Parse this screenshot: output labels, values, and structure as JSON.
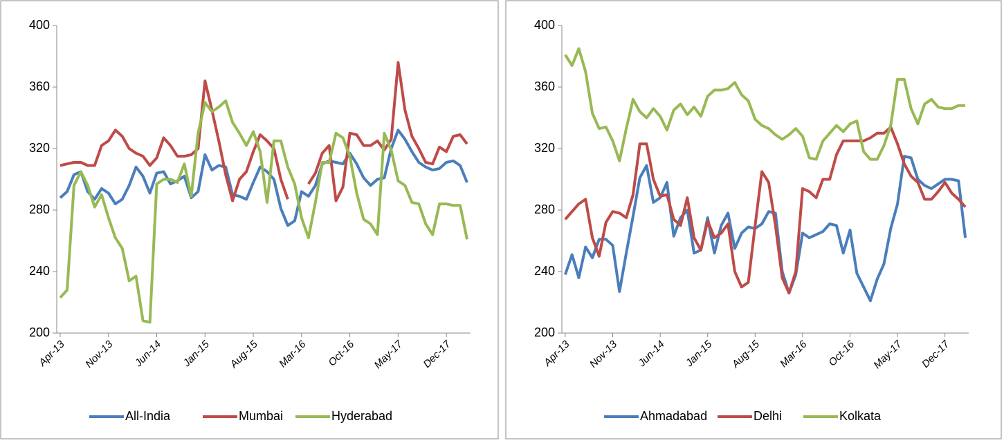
{
  "chart_data": [
    {
      "type": "line",
      "ylim": [
        200,
        400
      ],
      "yticks": [
        200,
        240,
        280,
        320,
        360,
        400
      ],
      "legend": "bottom",
      "categories": [
        "Apr-13",
        null,
        null,
        null,
        null,
        null,
        null,
        "Nov-13",
        null,
        null,
        null,
        null,
        null,
        null,
        "Jun-14",
        null,
        null,
        null,
        null,
        null,
        null,
        "Jan-15",
        null,
        null,
        null,
        null,
        null,
        null,
        "Aug-15",
        null,
        null,
        null,
        null,
        null,
        null,
        "Mar-16",
        null,
        null,
        null,
        null,
        null,
        null,
        "Oct-16",
        null,
        null,
        null,
        null,
        null,
        null,
        "May-17",
        null,
        null,
        null,
        null,
        null,
        null,
        "Dec-17",
        null,
        null,
        null
      ],
      "series": [
        {
          "name": "All-India",
          "color": "#4a7ebb",
          "values": [
            288,
            292,
            303,
            305,
            292,
            287,
            294,
            291,
            284,
            287,
            296,
            308,
            302,
            291,
            304,
            305,
            297,
            299,
            302,
            288,
            292,
            316,
            306,
            309,
            308,
            290,
            289,
            287,
            298,
            308,
            305,
            300,
            281,
            270,
            273,
            292,
            289,
            296,
            310,
            312,
            311,
            310,
            317,
            310,
            301,
            296,
            300,
            301,
            320,
            332,
            326,
            318,
            311,
            308,
            306,
            307,
            311,
            312,
            309,
            298
          ]
        },
        {
          "name": "Mumbai",
          "color": "#be4b48",
          "values": [
            309,
            310,
            311,
            311,
            309,
            309,
            322,
            325,
            332,
            328,
            320,
            317,
            315,
            309,
            314,
            327,
            322,
            315,
            315,
            316,
            320,
            364,
            345,
            325,
            303,
            286,
            300,
            305,
            318,
            329,
            325,
            320,
            300,
            287,
            null,
            null,
            297,
            304,
            317,
            322,
            286,
            295,
            330,
            329,
            322,
            322,
            325,
            319,
            326,
            376,
            345,
            328,
            320,
            311,
            310,
            321,
            318,
            328,
            329,
            323
          ]
        },
        {
          "name": "Hyderabad",
          "color": "#98b954",
          "values": [
            223,
            228,
            296,
            305,
            296,
            282,
            290,
            275,
            262,
            255,
            234,
            237,
            208,
            207,
            297,
            300,
            300,
            298,
            310,
            289,
            330,
            350,
            344,
            347,
            351,
            337,
            330,
            322,
            331,
            318,
            285,
            325,
            325,
            308,
            297,
            275,
            262,
            285,
            311,
            311,
            330,
            327,
            315,
            291,
            274,
            271,
            264,
            330,
            319,
            299,
            296,
            285,
            284,
            271,
            264,
            284,
            284,
            283,
            283,
            261
          ]
        }
      ]
    },
    {
      "type": "line",
      "ylim": [
        200,
        400
      ],
      "yticks": [
        200,
        240,
        280,
        320,
        360,
        400
      ],
      "legend": "bottom",
      "categories": [
        "Apr-13",
        null,
        null,
        null,
        null,
        null,
        null,
        "Nov-13",
        null,
        null,
        null,
        null,
        null,
        null,
        "Jun-14",
        null,
        null,
        null,
        null,
        null,
        null,
        "Jan-15",
        null,
        null,
        null,
        null,
        null,
        null,
        "Aug-15",
        null,
        null,
        null,
        null,
        null,
        null,
        "Mar-16",
        null,
        null,
        null,
        null,
        null,
        null,
        "Oct-16",
        null,
        null,
        null,
        null,
        null,
        null,
        "May-17",
        null,
        null,
        null,
        null,
        null,
        null,
        "Dec-17",
        null,
        null,
        null
      ],
      "series": [
        {
          "name": "Ahmadabad",
          "color": "#4a7ebb",
          "values": [
            238,
            251,
            236,
            256,
            249,
            261,
            261,
            257,
            227,
            252,
            276,
            301,
            309,
            285,
            288,
            298,
            263,
            275,
            280,
            252,
            254,
            275,
            252,
            270,
            278,
            255,
            265,
            269,
            268,
            271,
            279,
            278,
            240,
            226,
            238,
            265,
            262,
            264,
            266,
            271,
            270,
            252,
            267,
            239,
            230,
            221,
            235,
            245,
            268,
            284,
            315,
            314,
            300,
            296,
            294,
            297,
            300,
            300,
            299,
            262
          ]
        },
        {
          "name": "Delhi",
          "color": "#be4b48",
          "values": [
            274,
            279,
            284,
            287,
            262,
            250,
            272,
            279,
            278,
            275,
            290,
            323,
            323,
            300,
            289,
            290,
            274,
            270,
            288,
            262,
            254,
            273,
            262,
            265,
            271,
            240,
            230,
            233,
            270,
            305,
            298,
            270,
            236,
            226,
            240,
            294,
            292,
            288,
            300,
            300,
            316,
            325,
            325,
            325,
            325,
            327,
            330,
            330,
            334,
            323,
            310,
            302,
            298,
            287,
            287,
            292,
            298,
            291,
            287,
            282
          ]
        },
        {
          "name": "Kolkata",
          "color": "#98b954",
          "values": [
            381,
            374,
            385,
            370,
            343,
            333,
            334,
            325,
            312,
            333,
            352,
            344,
            340,
            346,
            341,
            332,
            345,
            349,
            342,
            347,
            341,
            354,
            358,
            358,
            359,
            363,
            355,
            351,
            339,
            335,
            333,
            329,
            326,
            329,
            333,
            328,
            314,
            313,
            325,
            330,
            335,
            331,
            336,
            338,
            318,
            313,
            313,
            322,
            335,
            365,
            365,
            346,
            336,
            349,
            352,
            347,
            346,
            346,
            348,
            348
          ]
        }
      ]
    }
  ]
}
